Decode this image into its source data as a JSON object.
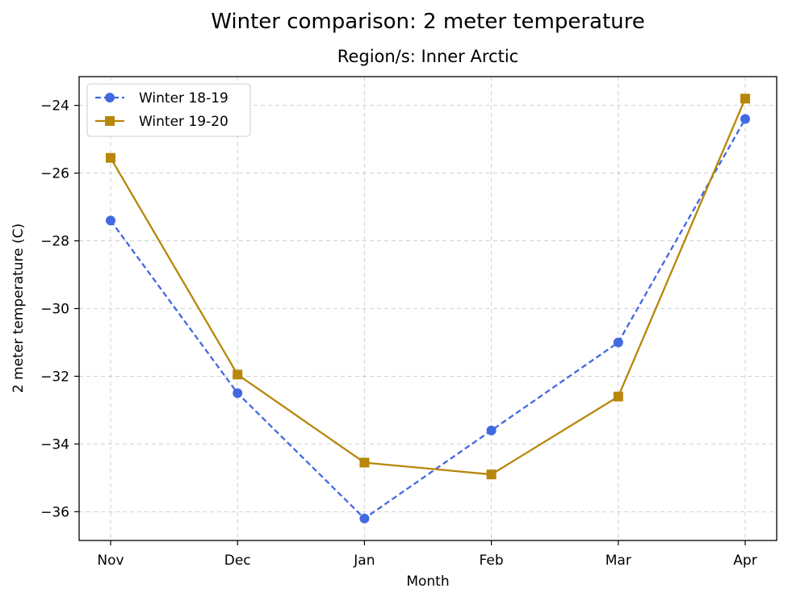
{
  "chart_data": {
    "type": "line",
    "title": "Winter comparison: 2 meter temperature",
    "subtitle": "Region/s: Inner Arctic",
    "xlabel": "Month",
    "ylabel": "2 meter temperature (C)",
    "categories": [
      "Nov",
      "Dec",
      "Jan",
      "Feb",
      "Mar",
      "Apr"
    ],
    "ylim": [
      -36.85,
      -23.15
    ],
    "yticks": [
      -36,
      -34,
      -32,
      -30,
      -28,
      -26,
      -24
    ],
    "yticklabels": [
      "−36",
      "−34",
      "−32",
      "−30",
      "−28",
      "−26",
      "−24"
    ],
    "grid": true,
    "legend_position": "top-left",
    "series": [
      {
        "name": "Winter 18-19",
        "values": [
          -27.4,
          -32.5,
          -36.2,
          -33.6,
          -31.0,
          -24.4
        ],
        "color": "#4169E1",
        "line_style": "dashed",
        "marker": "circle"
      },
      {
        "name": "Winter 19-20",
        "values": [
          -25.55,
          -31.95,
          -34.55,
          -34.9,
          -32.6,
          -23.8
        ],
        "color": "#B8860B",
        "line_style": "solid",
        "marker": "square"
      }
    ]
  }
}
